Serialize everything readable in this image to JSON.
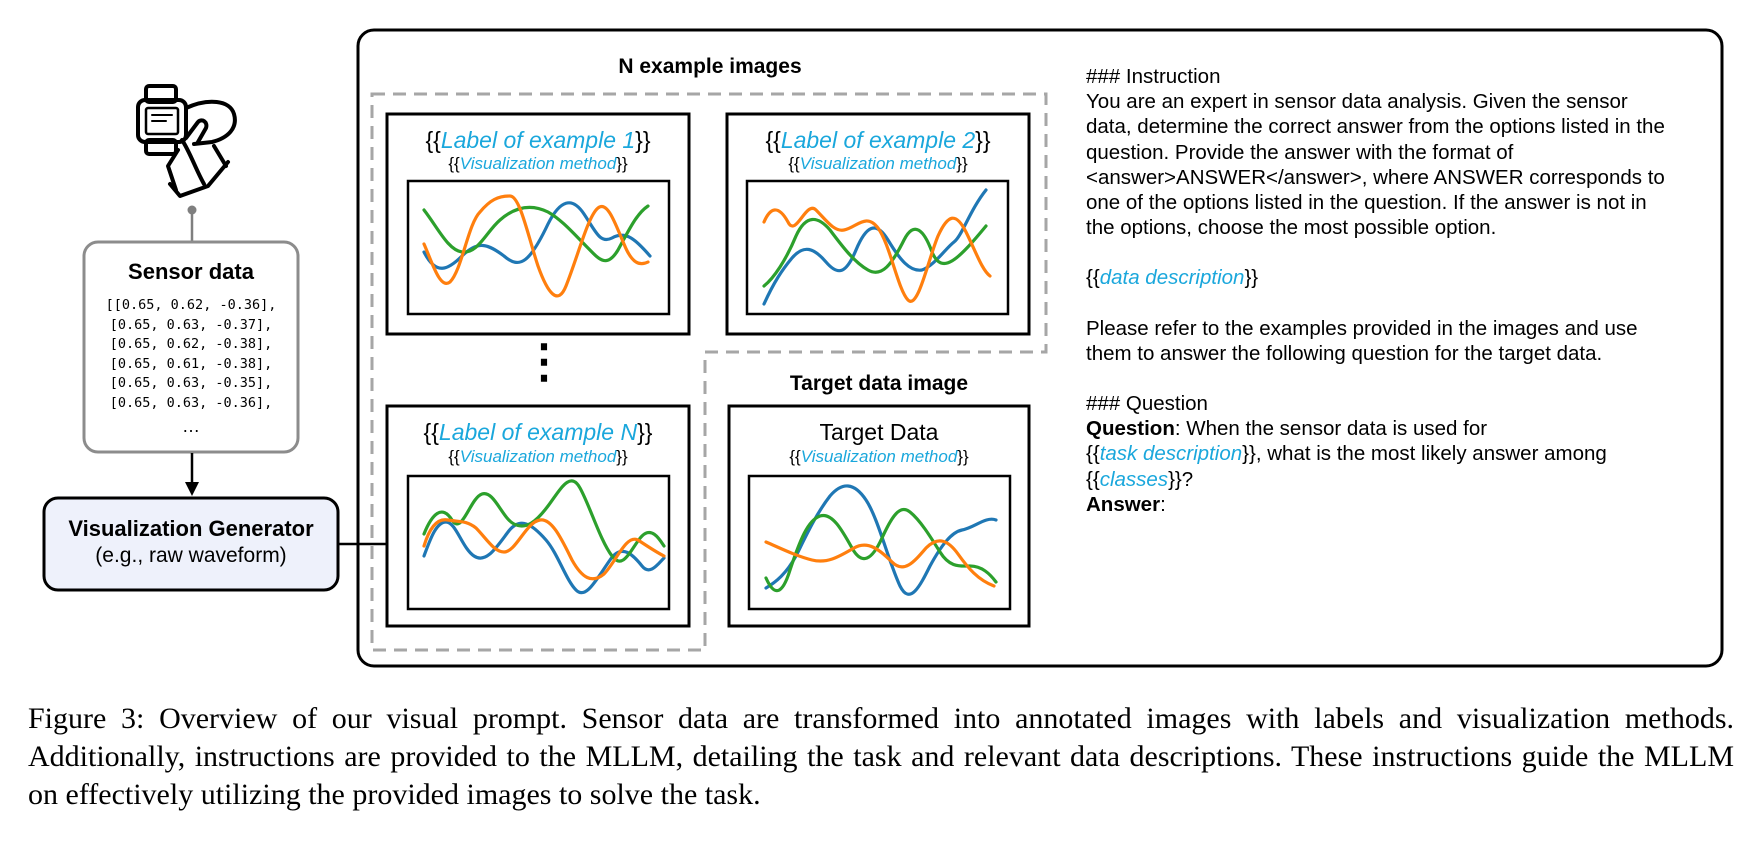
{
  "figure": {
    "sensor_box": {
      "title": "Sensor data",
      "rows": [
        "[[0.65, 0.62, -0.36],",
        "[0.65, 0.63, -0.37],",
        "[0.65, 0.62, -0.38],",
        "[0.65, 0.61, -0.38],",
        "[0.65, 0.63, -0.35],",
        "[0.65, 0.63, -0.36],"
      ],
      "ellipsis": "…"
    },
    "generator_box": {
      "title": "Visualization Generator",
      "subtitle": "(e.g., raw waveform)"
    },
    "examples": {
      "title": "N example images",
      "ellipsis": "⋮",
      "items": [
        {
          "label_prefix": "{{",
          "label": "Label of example 1",
          "label_suffix": "}}",
          "method_prefix": "{{",
          "method": "Visualization method",
          "method_suffix": "}}"
        },
        {
          "label_prefix": "{{",
          "label": "Label of example 2",
          "label_suffix": "}}",
          "method_prefix": "{{",
          "method": "Visualization method",
          "method_suffix": "}}"
        },
        {
          "label_prefix": "{{",
          "label": "Label of example N",
          "label_suffix": "}}",
          "method_prefix": "{{",
          "method": "Visualization method",
          "method_suffix": "}}"
        }
      ]
    },
    "target": {
      "title": "Target data image",
      "label": "Target Data",
      "method_prefix": "{{",
      "method": "Visualization method",
      "method_suffix": "}}"
    },
    "prompt": {
      "instruction_header": "### Instruction",
      "instruction_body": "You are an expert in sensor data analysis. Given the sensor data, determine the correct answer from the options listed in the question. Provide the answer with the format of <answer>ANSWER</answer>, where ANSWER corresponds to one of the options listed in the question. If the answer is not in the options, choose the most possible option.",
      "data_description": {
        "prefix": "{{",
        "text": "data description",
        "suffix": "}}"
      },
      "refer_text": "Please refer to the examples provided in the images and use them to answer the following question for the target data.",
      "question_header": "### Question",
      "question_label": "Question",
      "question_pre": ": When the sensor data is used for",
      "task": {
        "prefix": "{{",
        "text": "task description",
        "suffix": "}}"
      },
      "question_mid": ", what is the most likely answer among ",
      "classes": {
        "prefix": "{{",
        "text": "classes",
        "suffix": "}}"
      },
      "question_end": "?",
      "answer_label": "Answer",
      "answer_colon": ":"
    },
    "colors": {
      "blue": "#1f77b4",
      "orange": "#ff7f0e",
      "green": "#2ca02c",
      "accent_text": "#1aa7dc",
      "generator_fill": "#eef1fb"
    }
  },
  "caption": "Figure 3: Overview of our visual prompt. Sensor data are transformed into annotated images with labels and visualization methods. Additionally, instructions are provided to the MLLM, detailing the task and relevant data descriptions. These instructions guide the MLLM on effectively utilizing the provided images to solve the task."
}
